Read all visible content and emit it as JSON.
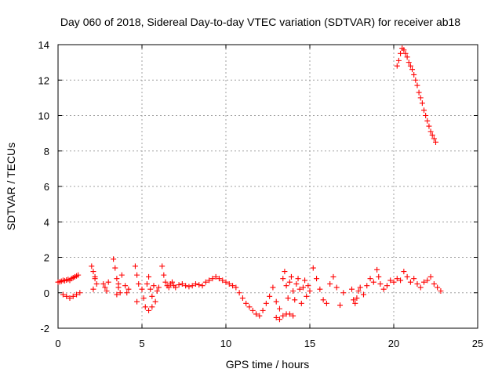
{
  "chart_data": {
    "type": "scatter",
    "title": "Day 060 of 2018, Sidereal Day-to-day VTEC variation (SDTVAR) for receiver ab18",
    "xlabel": "GPS time / hours",
    "ylabel": "SDTVAR / TECUs",
    "xlim": [
      0,
      25
    ],
    "ylim": [
      -2,
      14
    ],
    "xticks": [
      0,
      5,
      10,
      15,
      20,
      25
    ],
    "yticks": [
      -2,
      0,
      2,
      4,
      6,
      8,
      10,
      12,
      14
    ],
    "grid": true,
    "marker": "+",
    "color": "#ff0000",
    "series": [
      {
        "name": "SDTVAR",
        "x": [
          0.0,
          0.1,
          0.2,
          0.3,
          0.4,
          0.5,
          0.6,
          0.7,
          0.8,
          0.9,
          1.0,
          1.1,
          1.2,
          0.3,
          0.5,
          0.7,
          0.9,
          1.1,
          1.3,
          2.0,
          2.1,
          2.2,
          2.3,
          2.1,
          2.2,
          2.7,
          2.8,
          2.9,
          3.0,
          3.3,
          3.4,
          3.5,
          3.6,
          3.7,
          3.5,
          3.6,
          3.8,
          4.0,
          4.2,
          4.1,
          4.6,
          4.7,
          4.8,
          4.7,
          5.0,
          5.1,
          5.2,
          5.3,
          5.4,
          5.5,
          5.6,
          5.7,
          5.8,
          5.9,
          6.0,
          5.4,
          5.6,
          6.2,
          6.3,
          6.4,
          6.5,
          6.6,
          6.7,
          6.8,
          6.9,
          7.0,
          7.2,
          7.4,
          7.6,
          7.8,
          8.0,
          8.2,
          8.4,
          8.6,
          8.8,
          9.0,
          9.2,
          9.4,
          9.6,
          9.8,
          10.0,
          10.2,
          10.4,
          10.6,
          10.8,
          11.0,
          11.2,
          11.4,
          11.6,
          11.8,
          12.0,
          12.2,
          12.4,
          12.6,
          12.8,
          13.0,
          13.2,
          13.4,
          13.5,
          13.6,
          13.7,
          13.8,
          13.9,
          14.0,
          14.1,
          14.2,
          14.3,
          14.4,
          14.5,
          14.6,
          14.7,
          14.8,
          14.9,
          15.0,
          13.0,
          13.2,
          13.4,
          13.6,
          13.8,
          14.0,
          15.2,
          15.4,
          15.6,
          15.8,
          16.0,
          16.2,
          16.4,
          16.6,
          16.8,
          17.0,
          17.5,
          17.6,
          17.7,
          17.8,
          17.9,
          18.0,
          18.2,
          18.4,
          18.6,
          18.8,
          19.0,
          19.1,
          19.2,
          19.4,
          19.6,
          19.8,
          20.0,
          20.2,
          20.4,
          20.6,
          20.8,
          21.0,
          21.2,
          21.4,
          21.6,
          21.8,
          22.0,
          22.2,
          22.4,
          22.6,
          22.8,
          20.2,
          20.3,
          20.4,
          20.5,
          20.6,
          20.7,
          20.8,
          20.9,
          21.0,
          21.1,
          21.2,
          21.3,
          21.4,
          21.5,
          21.6,
          21.7,
          21.8,
          21.9,
          22.0,
          22.1,
          22.2,
          22.3,
          22.4,
          22.5
        ],
        "y": [
          0.6,
          0.62,
          0.65,
          0.7,
          0.68,
          0.72,
          0.75,
          0.7,
          0.8,
          0.85,
          0.9,
          0.95,
          1.0,
          -0.1,
          -0.2,
          -0.3,
          -0.2,
          -0.1,
          0.0,
          1.5,
          1.2,
          0.8,
          0.5,
          0.2,
          0.9,
          0.5,
          0.3,
          0.1,
          0.6,
          1.9,
          1.4,
          0.8,
          0.3,
          0.0,
          -0.1,
          0.5,
          1.0,
          0.4,
          0.2,
          0.0,
          1.5,
          1.0,
          0.5,
          -0.5,
          0.2,
          -0.3,
          -0.8,
          0.5,
          0.9,
          0.2,
          -0.2,
          0.4,
          -0.5,
          0.1,
          0.3,
          -1.0,
          -0.8,
          1.5,
          1.0,
          0.6,
          0.4,
          0.3,
          0.5,
          0.6,
          0.4,
          0.3,
          0.45,
          0.5,
          0.4,
          0.35,
          0.4,
          0.5,
          0.45,
          0.4,
          0.6,
          0.7,
          0.8,
          0.9,
          0.8,
          0.7,
          0.6,
          0.5,
          0.4,
          0.3,
          0.0,
          -0.3,
          -0.6,
          -0.8,
          -1.0,
          -1.2,
          -1.3,
          -1.0,
          -0.6,
          -0.2,
          0.3,
          -0.5,
          -0.9,
          0.8,
          1.2,
          0.4,
          -0.3,
          0.6,
          0.9,
          0.1,
          -0.4,
          0.5,
          0.8,
          0.2,
          -0.6,
          0.3,
          0.7,
          -0.2,
          0.4,
          0.1,
          -1.4,
          -1.5,
          -1.3,
          -1.2,
          -1.2,
          -1.3,
          1.4,
          0.8,
          0.2,
          -0.4,
          -0.6,
          0.5,
          0.9,
          0.3,
          -0.7,
          0.0,
          0.2,
          -0.4,
          -0.6,
          -0.3,
          0.1,
          0.3,
          -0.1,
          0.4,
          0.8,
          0.6,
          1.3,
          0.9,
          0.5,
          0.2,
          0.4,
          0.7,
          0.6,
          0.8,
          0.7,
          1.2,
          0.9,
          0.6,
          0.8,
          0.5,
          0.3,
          0.6,
          0.7,
          0.9,
          0.5,
          0.3,
          0.1,
          12.8,
          13.1,
          13.5,
          13.8,
          13.7,
          13.5,
          13.3,
          13.0,
          12.8,
          12.6,
          12.3,
          12.0,
          11.7,
          11.3,
          11.0,
          10.7,
          10.3,
          10.0,
          9.7,
          9.4,
          9.1,
          8.9,
          8.7,
          8.5
        ]
      }
    ]
  }
}
